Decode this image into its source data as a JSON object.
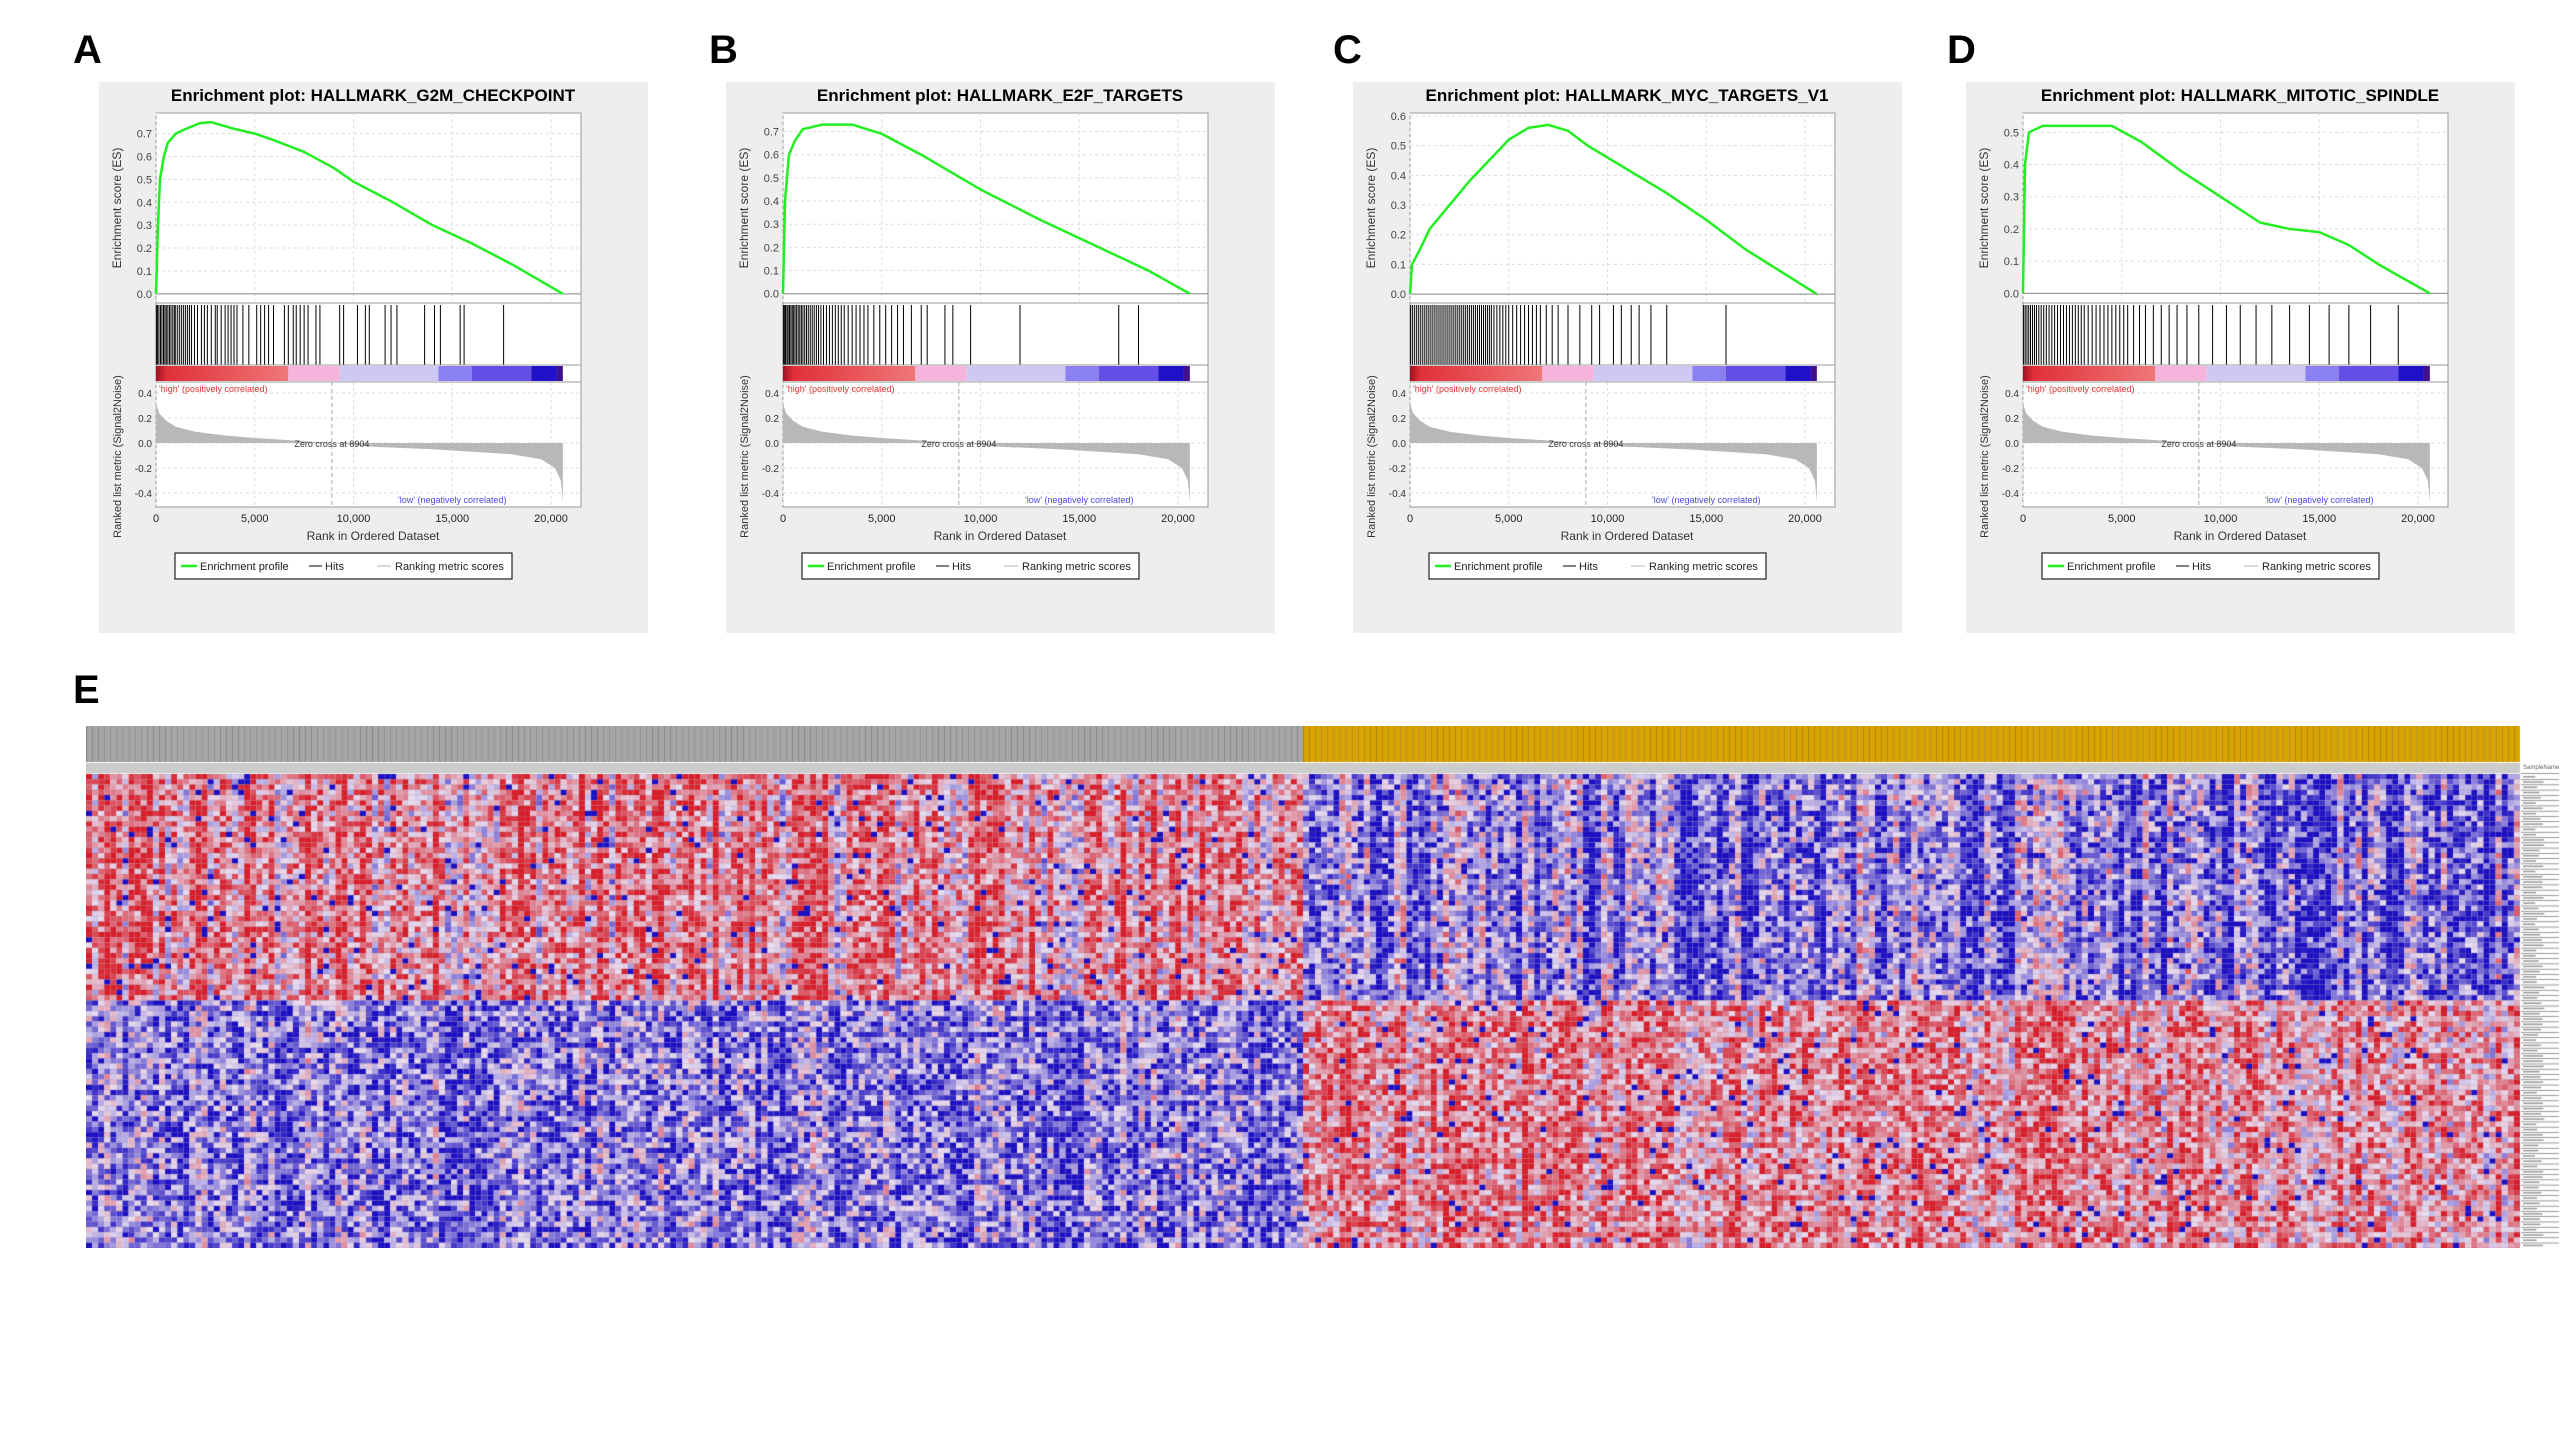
{
  "figure": {
    "letters": [
      "A",
      "B",
      "C",
      "D",
      "E"
    ]
  },
  "chart_data": [
    {
      "type": "line",
      "panel": "A",
      "title": "Enrichment plot: HALLMARK_G2M_CHECKPOINT",
      "es_ylabel": "Enrichment score (ES)",
      "metric_ylabel": "Ranked list metric (Signal2Noise)",
      "xlabel": "Rank in Ordered Dataset",
      "x_ticks": [
        0,
        5000,
        10000,
        15000,
        20000
      ],
      "x_tick_labels": [
        "0",
        "5,000",
        "10,000",
        "15,000",
        "20,000"
      ],
      "es_ticks": [
        0.0,
        0.1,
        0.2,
        0.3,
        0.4,
        0.5,
        0.6,
        0.7
      ],
      "es_ylim": [
        -0.04,
        0.79
      ],
      "metric_ticks": [
        0.4,
        0.2,
        0.0,
        -0.2,
        -0.4
      ],
      "es_curve": [
        [
          0,
          0
        ],
        [
          100,
          0.3
        ],
        [
          200,
          0.5
        ],
        [
          400,
          0.6
        ],
        [
          600,
          0.66
        ],
        [
          1000,
          0.7
        ],
        [
          1500,
          0.72
        ],
        [
          2200,
          0.745
        ],
        [
          2800,
          0.75
        ],
        [
          4000,
          0.72
        ],
        [
          5000,
          0.7
        ],
        [
          6000,
          0.67
        ],
        [
          7500,
          0.62
        ],
        [
          9000,
          0.55
        ],
        [
          10000,
          0.49
        ],
        [
          12000,
          0.4
        ],
        [
          14000,
          0.3
        ],
        [
          16000,
          0.22
        ],
        [
          18000,
          0.13
        ],
        [
          20600,
          0
        ]
      ],
      "hits": [
        20,
        80,
        150,
        230,
        300,
        380,
        450,
        520,
        600,
        680,
        760,
        850,
        930,
        1000,
        1100,
        1200,
        1300,
        1400,
        1500,
        1600,
        1700,
        1800,
        1950,
        2100,
        2300,
        2450,
        2600,
        2800,
        3000,
        3100,
        3300,
        3500,
        3650,
        3800,
        3950,
        4100,
        4400,
        4700,
        5100,
        5300,
        5500,
        5700,
        5950,
        6500,
        6700,
        6950,
        7100,
        7300,
        7500,
        7700,
        8100,
        8300,
        9300,
        9500,
        10200,
        10600,
        10800,
        11600,
        11900,
        12200,
        13600,
        14100,
        14400,
        15400,
        15600,
        17600
      ],
      "zero_cross_label": "Zero cross at 8904",
      "zero_cross": 8904,
      "high_label": "'high' (positively correlated)",
      "low_label": "'low' (negatively correlated)",
      "legend": [
        "Enrichment profile",
        "Hits",
        "Ranking metric scores"
      ]
    },
    {
      "type": "line",
      "panel": "B",
      "title": "Enrichment plot: HALLMARK_E2F_TARGETS",
      "es_ylabel": "Enrichment score (ES)",
      "metric_ylabel": "Ranked list metric (Signal2Noise)",
      "xlabel": "Rank in Ordered Dataset",
      "x_ticks": [
        0,
        5000,
        10000,
        15000,
        20000
      ],
      "x_tick_labels": [
        "0",
        "5,000",
        "10,000",
        "15,000",
        "20,000"
      ],
      "es_ticks": [
        0.0,
        0.1,
        0.2,
        0.3,
        0.4,
        0.5,
        0.6,
        0.7
      ],
      "es_ylim": [
        -0.04,
        0.78
      ],
      "metric_ticks": [
        0.4,
        0.2,
        0.0,
        -0.2,
        -0.4
      ],
      "es_curve": [
        [
          0,
          0
        ],
        [
          100,
          0.4
        ],
        [
          300,
          0.6
        ],
        [
          600,
          0.66
        ],
        [
          1000,
          0.71
        ],
        [
          2000,
          0.73
        ],
        [
          3500,
          0.73
        ],
        [
          5000,
          0.69
        ],
        [
          7000,
          0.6
        ],
        [
          10000,
          0.45
        ],
        [
          13000,
          0.32
        ],
        [
          16000,
          0.2
        ],
        [
          18500,
          0.1
        ],
        [
          20600,
          0
        ]
      ],
      "hits": [
        20,
        70,
        130,
        200,
        260,
        330,
        400,
        470,
        540,
        610,
        690,
        770,
        850,
        930,
        1010,
        1100,
        1190,
        1280,
        1380,
        1480,
        1580,
        1690,
        1800,
        1920,
        2050,
        2200,
        2350,
        2500,
        2650,
        2800,
        2950,
        3100,
        3300,
        3500,
        3700,
        3900,
        4100,
        4300,
        4600,
        4900,
        5200,
        5500,
        5800,
        6100,
        6500,
        7000,
        7300,
        8200,
        8600,
        9500,
        12000,
        17000,
        18000
      ],
      "zero_cross_label": "Zero cross at 8904",
      "zero_cross": 8904,
      "high_label": "'high' (positively correlated)",
      "low_label": "'low' (negatively correlated)",
      "legend": [
        "Enrichment profile",
        "Hits",
        "Ranking metric scores"
      ]
    },
    {
      "type": "line",
      "panel": "C",
      "title": "Enrichment plot: HALLMARK_MYC_TARGETS_V1",
      "es_ylabel": "Enrichment score (ES)",
      "metric_ylabel": "Ranked list metric (Signal2Noise)",
      "xlabel": "Rank in Ordered Dataset",
      "x_ticks": [
        0,
        5000,
        10000,
        15000,
        20000
      ],
      "x_tick_labels": [
        "0",
        "5,000",
        "10,000",
        "15,000",
        "20,000"
      ],
      "es_ticks": [
        0.0,
        0.1,
        0.2,
        0.3,
        0.4,
        0.5,
        0.6
      ],
      "es_ylim": [
        -0.03,
        0.61
      ],
      "metric_ticks": [
        0.4,
        0.2,
        0.0,
        -0.2,
        -0.4
      ],
      "es_curve": [
        [
          0,
          0
        ],
        [
          100,
          0.1
        ],
        [
          500,
          0.15
        ],
        [
          1000,
          0.22
        ],
        [
          2000,
          0.3
        ],
        [
          3000,
          0.38
        ],
        [
          4000,
          0.45
        ],
        [
          5000,
          0.52
        ],
        [
          6000,
          0.56
        ],
        [
          7000,
          0.57
        ],
        [
          8000,
          0.55
        ],
        [
          9000,
          0.5
        ],
        [
          11000,
          0.42
        ],
        [
          13000,
          0.34
        ],
        [
          15000,
          0.25
        ],
        [
          17000,
          0.15
        ],
        [
          20600,
          0
        ]
      ],
      "hits": [
        30,
        120,
        220,
        320,
        420,
        520,
        620,
        720,
        820,
        920,
        1020,
        1120,
        1220,
        1320,
        1420,
        1520,
        1620,
        1720,
        1820,
        1920,
        2020,
        2120,
        2220,
        2320,
        2420,
        2520,
        2620,
        2720,
        2820,
        2920,
        3020,
        3120,
        3220,
        3320,
        3420,
        3520,
        3620,
        3720,
        3820,
        3920,
        4020,
        4120,
        4250,
        4400,
        4550,
        4700,
        4850,
        5000,
        5200,
        5400,
        5600,
        5800,
        6000,
        6200,
        6400,
        6600,
        6900,
        7200,
        7500,
        8000,
        8600,
        9200,
        9600,
        10300,
        10700,
        11200,
        11600,
        12200,
        13000,
        16000
      ],
      "zero_cross_label": "Zero cross at 8904",
      "zero_cross": 8904,
      "high_label": "'high' (positively correlated)",
      "low_label": "'low' (negatively correlated)",
      "legend": [
        "Enrichment profile",
        "Hits",
        "Ranking metric scores"
      ]
    },
    {
      "type": "line",
      "panel": "D",
      "title": "Enrichment plot: HALLMARK_MITOTIC_SPINDLE",
      "es_ylabel": "Enrichment score (ES)",
      "metric_ylabel": "Ranked list metric (Signal2Noise)",
      "xlabel": "Rank in Ordered Dataset",
      "x_ticks": [
        0,
        5000,
        10000,
        15000,
        20000
      ],
      "x_tick_labels": [
        "0",
        "5,000",
        "10,000",
        "15,000",
        "20,000"
      ],
      "es_ticks": [
        0.0,
        0.1,
        0.2,
        0.3,
        0.4,
        0.5
      ],
      "es_ylim": [
        -0.03,
        0.56
      ],
      "metric_ticks": [
        0.4,
        0.2,
        0.0,
        -0.2,
        -0.4
      ],
      "es_curve": [
        [
          0,
          0
        ],
        [
          100,
          0.4
        ],
        [
          300,
          0.5
        ],
        [
          1000,
          0.52
        ],
        [
          3000,
          0.52
        ],
        [
          4500,
          0.52
        ],
        [
          6000,
          0.47
        ],
        [
          8000,
          0.38
        ],
        [
          10000,
          0.3
        ],
        [
          12000,
          0.22
        ],
        [
          13500,
          0.2
        ],
        [
          15000,
          0.19
        ],
        [
          16500,
          0.15
        ],
        [
          18000,
          0.09
        ],
        [
          20600,
          0
        ]
      ],
      "hits": [
        30,
        110,
        200,
        290,
        380,
        480,
        580,
        680,
        800,
        920,
        1050,
        1180,
        1320,
        1460,
        1600,
        1750,
        1900,
        2050,
        2200,
        2350,
        2500,
        2650,
        2800,
        2950,
        3100,
        3300,
        3500,
        3700,
        3900,
        4100,
        4300,
        4500,
        4700,
        4900,
        5100,
        5300,
        5600,
        5900,
        6200,
        6600,
        7000,
        7400,
        7800,
        8300,
        8900,
        9600,
        10300,
        11000,
        11800,
        12600,
        13500,
        14500,
        15500,
        16500,
        17600,
        19000
      ],
      "zero_cross_label": "Zero cross at 8904",
      "zero_cross": 8904,
      "high_label": "'high' (positively correlated)",
      "low_label": "'low' (negatively correlated)",
      "legend": [
        "Enrichment profile",
        "Hits",
        "Ranking metric scores"
      ]
    },
    {
      "type": "heatmap",
      "panel": "E",
      "groups": [
        {
          "color": "#a6a6a6",
          "fraction": 0.5
        },
        {
          "color": "#d9a400",
          "fraction": 0.5
        }
      ],
      "colormap": {
        "low": "#1c0fc2",
        "mid": "#e8dcf0",
        "high": "#d81e2a"
      },
      "row_clusters": [
        "up in grey group",
        "up in gold group"
      ],
      "row_header": "SampleName"
    }
  ],
  "colors": {
    "es_line": "#22ee22",
    "hits": "#000000",
    "metric_fill": "#b8b8b8",
    "high_text": "#e03030",
    "low_text": "#4a4ae0",
    "panel_bg": "#eeeeee"
  }
}
